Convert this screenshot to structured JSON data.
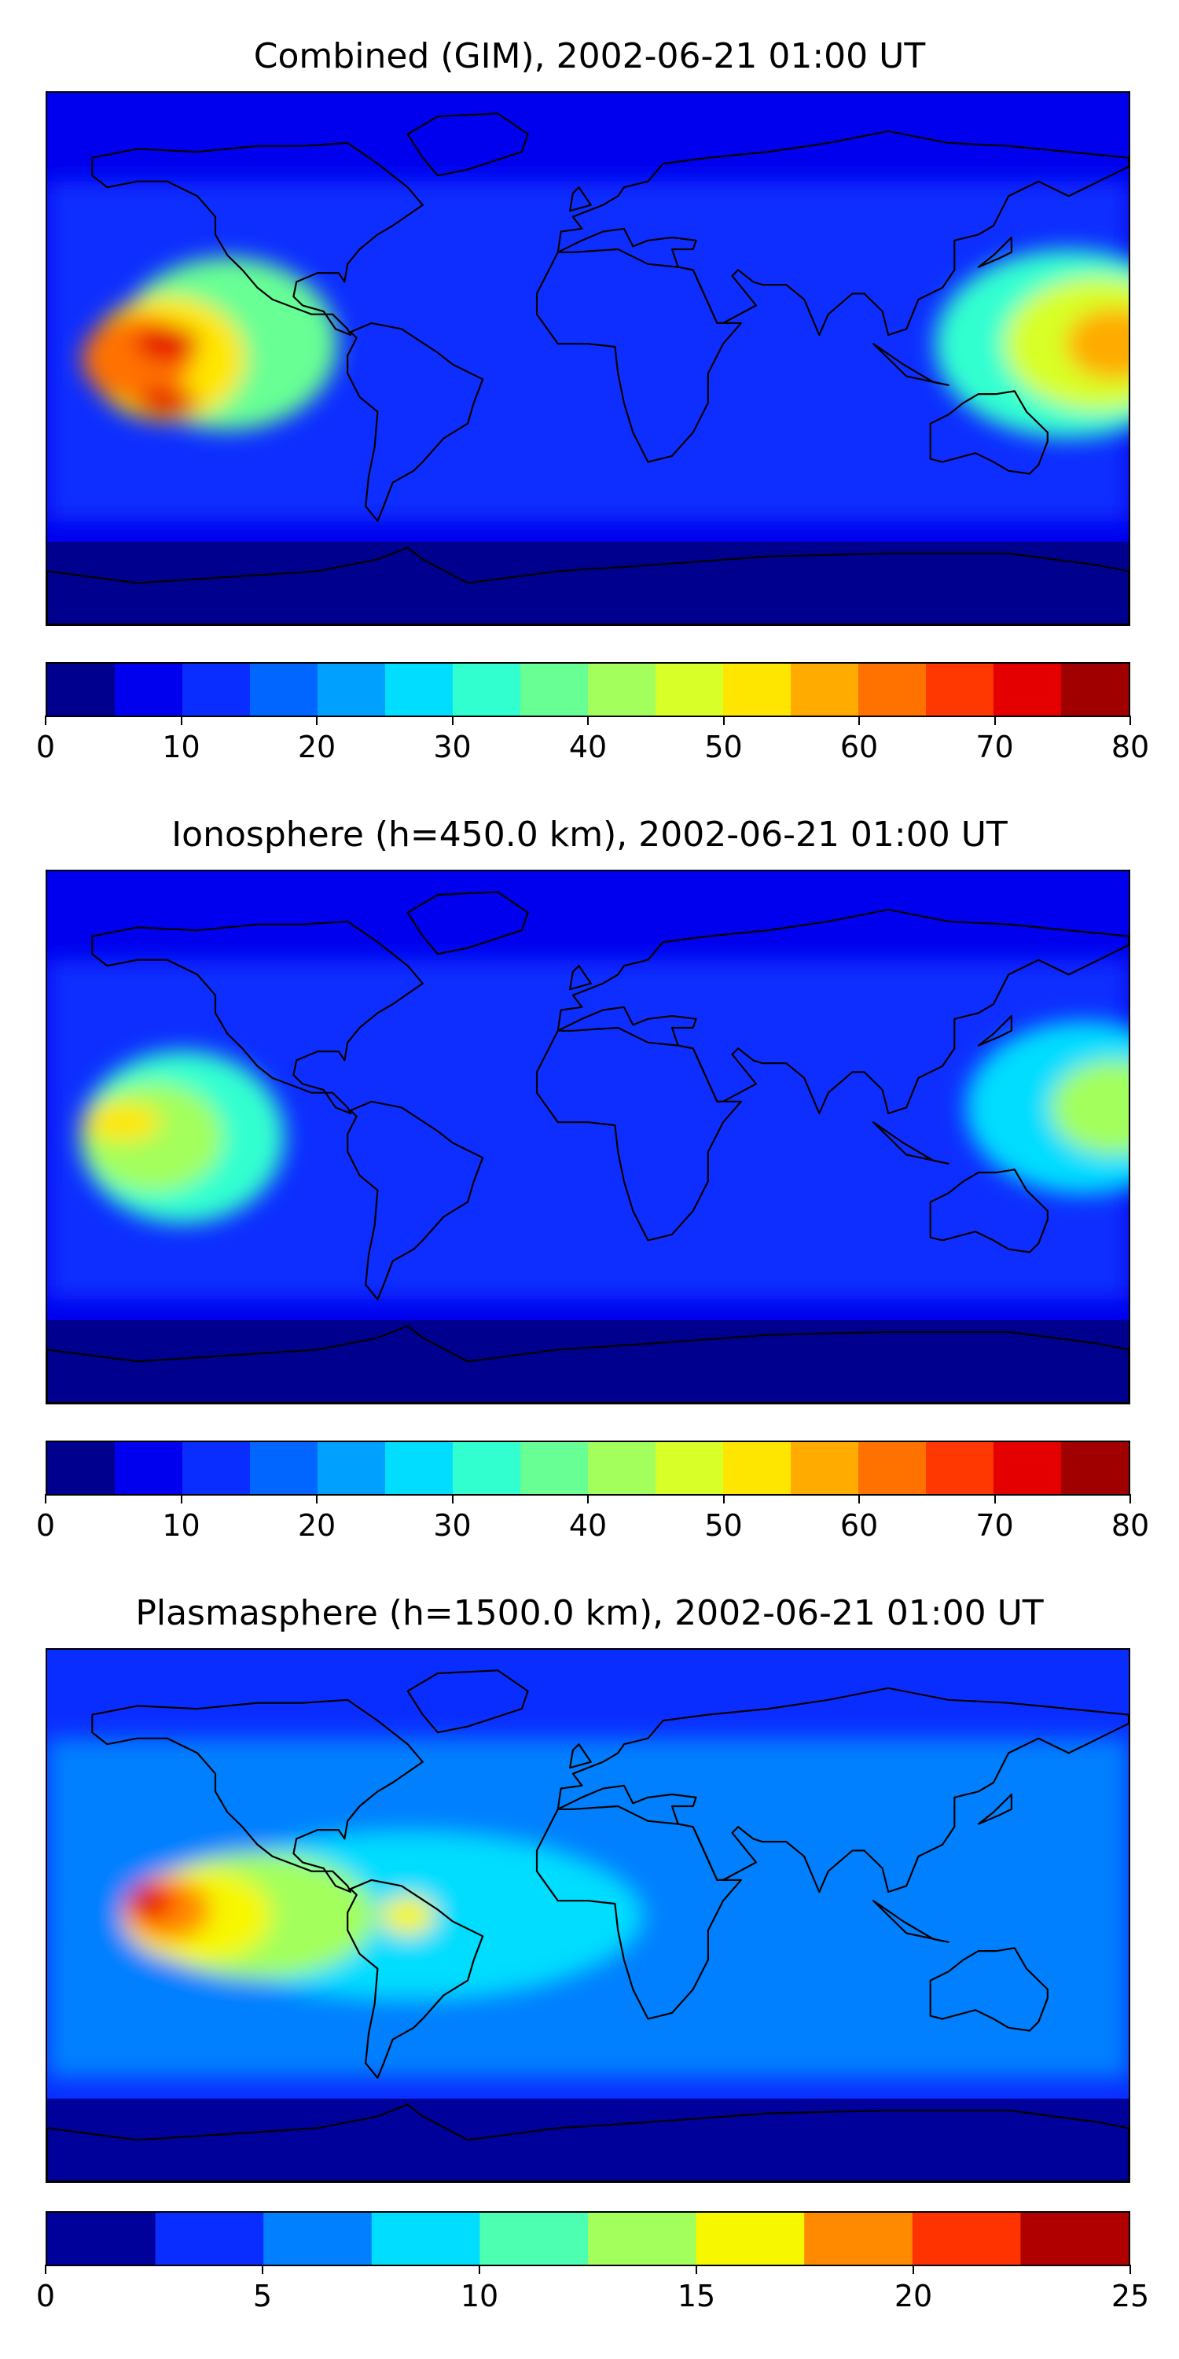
{
  "panels": [
    {
      "title": "Combined (GIM), 2002-06-21 01:00 UT",
      "colorbar": {
        "colors": [
          "#00008f",
          "#0000ee",
          "#0a2dff",
          "#0066ff",
          "#00a0ff",
          "#00ddff",
          "#32ffd0",
          "#68ff94",
          "#a3ff5c",
          "#d8ff27",
          "#ffe600",
          "#ffab00",
          "#ff7200",
          "#ff3700",
          "#e40000",
          "#a00000"
        ],
        "ticks": [
          0,
          10,
          20,
          30,
          40,
          50,
          60,
          70,
          80
        ],
        "range": [
          0,
          80
        ]
      },
      "blobs": [
        {
          "lon": -120,
          "lat": 5,
          "rx": 140,
          "ry": 110,
          "c": 7
        },
        {
          "lon": -140,
          "lat": 0,
          "rx": 100,
          "ry": 80,
          "c": 10
        },
        {
          "lon": -150,
          "lat": 0,
          "rx": 70,
          "ry": 55,
          "c": 12
        },
        {
          "lon": -140,
          "lat": 5,
          "rx": 40,
          "ry": 22,
          "c": 14
        },
        {
          "lon": -140,
          "lat": -15,
          "rx": 40,
          "ry": 18,
          "c": 14
        },
        {
          "lon": 160,
          "lat": 5,
          "rx": 170,
          "ry": 120,
          "c": 6
        },
        {
          "lon": 170,
          "lat": 5,
          "rx": 120,
          "ry": 85,
          "c": 9
        },
        {
          "lon": 175,
          "lat": 5,
          "rx": 60,
          "ry": 45,
          "c": 11
        }
      ]
    },
    {
      "title": "Ionosphere  (h=450.0 km), 2002-06-21 01:00 UT",
      "colorbar": {
        "colors": [
          "#00008f",
          "#0000ee",
          "#0a2dff",
          "#0066ff",
          "#00a0ff",
          "#00ddff",
          "#32ffd0",
          "#68ff94",
          "#a3ff5c",
          "#d8ff27",
          "#ffe600",
          "#ffab00",
          "#ff7200",
          "#ff3700",
          "#e40000",
          "#a00000"
        ],
        "ticks": [
          0,
          10,
          20,
          30,
          40,
          50,
          60,
          70,
          80
        ],
        "range": [
          0,
          80
        ]
      },
      "blobs": [
        {
          "lon": -135,
          "lat": 0,
          "rx": 130,
          "ry": 110,
          "c": 6
        },
        {
          "lon": -145,
          "lat": 0,
          "rx": 90,
          "ry": 70,
          "c": 8
        },
        {
          "lon": -155,
          "lat": 5,
          "rx": 50,
          "ry": 25,
          "c": 10
        },
        {
          "lon": 165,
          "lat": 10,
          "rx": 150,
          "ry": 110,
          "c": 5
        },
        {
          "lon": 175,
          "lat": 10,
          "rx": 80,
          "ry": 60,
          "c": 8
        }
      ]
    },
    {
      "title": "Plasmasphere (h=1500.0 km), 2002-06-21 01:00 UT",
      "colorbar": {
        "colors": [
          "#00009a",
          "#0a2dff",
          "#0080ff",
          "#00ddff",
          "#4dffb0",
          "#a3ff5c",
          "#f7f700",
          "#ff8a00",
          "#ff3300",
          "#b00000"
        ],
        "ticks": [
          0,
          5,
          10,
          15,
          20,
          25
        ],
        "range": [
          0,
          25
        ]
      },
      "blobs": [
        {
          "lon": -80,
          "lat": 0,
          "rx": 330,
          "ry": 150,
          "c": 2
        },
        {
          "lon": -60,
          "lat": 0,
          "rx": 300,
          "ry": 105,
          "c": 3
        },
        {
          "lon": -110,
          "lat": 0,
          "rx": 150,
          "ry": 80,
          "c": 5
        },
        {
          "lon": -130,
          "lat": 0,
          "rx": 95,
          "ry": 60,
          "c": 6
        },
        {
          "lon": -140,
          "lat": 2,
          "rx": 55,
          "ry": 40,
          "c": 7
        },
        {
          "lon": -145,
          "lat": 5,
          "rx": 30,
          "ry": 25,
          "c": 8
        },
        {
          "lon": -147,
          "lat": 5,
          "rx": 15,
          "ry": 12,
          "c": 9
        },
        {
          "lon": -60,
          "lat": 0,
          "rx": 35,
          "ry": 25,
          "c": 6
        }
      ]
    }
  ]
}
